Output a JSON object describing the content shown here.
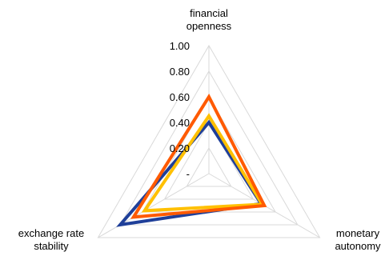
{
  "chart_data": {
    "type": "radar",
    "axes": [
      "financial openness",
      "monetary autonomy",
      "exchange rate stability"
    ],
    "axis_label_lines": [
      [
        "financial",
        "openness"
      ],
      [
        "monetary",
        "autonomy"
      ],
      [
        "exchange rate",
        "stability"
      ]
    ],
    "rlim": [
      0,
      1
    ],
    "ticks": [
      0,
      0.2,
      0.4,
      0.6,
      0.8,
      1.0
    ],
    "tick_labels": [
      "-",
      "0.20",
      "0.40",
      "0.60",
      "0.80",
      "1.00"
    ],
    "grid": true,
    "legend": "none",
    "series": [
      {
        "values": [
          0.4,
          0.47,
          0.8
        ],
        "color": "#1f3f99"
      },
      {
        "values": [
          0.45,
          0.48,
          0.58
        ],
        "color": "#ffc000"
      },
      {
        "values": [
          0.6,
          0.5,
          0.68
        ],
        "color": "#ff5a00"
      }
    ]
  }
}
